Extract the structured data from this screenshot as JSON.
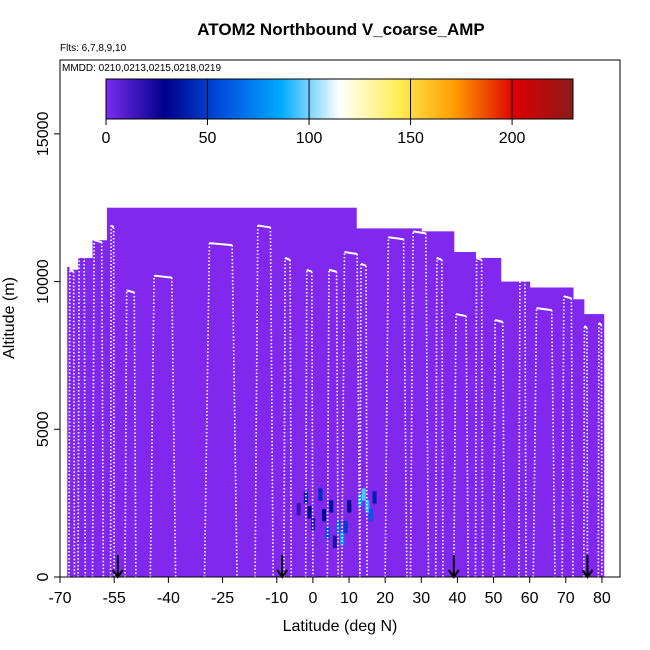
{
  "chart_data": {
    "type": "heatmap",
    "title": "ATOM2 Northbound V_coarse_AMP",
    "flights_label": "Flts: 6,7,8,9,10",
    "dates_label": "MMDD: 0210,0213,0215,0218,0219",
    "xlabel": "Latitude (deg N)",
    "ylabel": "Altitude (m)",
    "xlim": [
      -70,
      85
    ],
    "ylim": [
      0,
      17500
    ],
    "x_ticks": [
      -70,
      -55,
      -40,
      -25,
      -10,
      0,
      10,
      20,
      30,
      40,
      50,
      60,
      70,
      80
    ],
    "x_tick_labels": [
      "-70",
      "-55",
      "-40",
      "-25",
      "-10",
      "0",
      "10",
      "20",
      "30",
      "40",
      "50",
      "60",
      "70",
      "80"
    ],
    "y_ticks": [
      0,
      5000,
      10000,
      15000
    ],
    "y_tick_labels": [
      "0",
      "5000",
      "10000",
      "15000"
    ],
    "colorbar": {
      "range": [
        0,
        230
      ],
      "ticks": [
        0,
        50,
        100,
        150,
        200
      ],
      "tick_labels": [
        "0",
        "50",
        "100",
        "150",
        "200"
      ],
      "colors": [
        "#7b2cf0",
        "#00008b",
        "#0050e0",
        "#00aaff",
        "#ffffff",
        "#ffee55",
        "#ff9900",
        "#dd0000",
        "#8b1a1a"
      ]
    },
    "background_value": 0,
    "background_color": "#8128ee",
    "coverage_ceiling": [
      {
        "x": [
          -68,
          -67.5
        ],
        "y": 10500
      },
      {
        "x": [
          -67.5,
          -65
        ],
        "y": 10400
      },
      {
        "x": [
          -65,
          -61
        ],
        "y": 10800
      },
      {
        "x": [
          -61,
          -57
        ],
        "y": 11400
      },
      {
        "x": [
          -57,
          -42
        ],
        "y": 12500
      },
      {
        "x": [
          -42,
          -28
        ],
        "y": 12500
      },
      {
        "x": [
          -28,
          -12
        ],
        "y": 12500
      },
      {
        "x": [
          -12,
          -6
        ],
        "y": 12500
      },
      {
        "x": [
          -6,
          12
        ],
        "y": 12500
      },
      {
        "x": [
          12,
          20
        ],
        "y": 11800
      },
      {
        "x": [
          20,
          30
        ],
        "y": 11800
      },
      {
        "x": [
          30,
          39
        ],
        "y": 11700
      },
      {
        "x": [
          39,
          45
        ],
        "y": 11000
      },
      {
        "x": [
          45,
          52
        ],
        "y": 10800
      },
      {
        "x": [
          52,
          60
        ],
        "y": 10000
      },
      {
        "x": [
          60,
          72
        ],
        "y": 9800
      },
      {
        "x": [
          72,
          75
        ],
        "y": 9400
      },
      {
        "x": [
          75,
          80.5
        ],
        "y": 8900
      }
    ],
    "high_value_cells": [
      {
        "x": -2,
        "y": 2700,
        "value": 40
      },
      {
        "x": -1,
        "y": 2200,
        "value": 30
      },
      {
        "x": 0,
        "y": 1800,
        "value": 20
      },
      {
        "x": 2,
        "y": 2800,
        "value": 45
      },
      {
        "x": 3,
        "y": 2100,
        "value": 30
      },
      {
        "x": 4,
        "y": 1500,
        "value": 55
      },
      {
        "x": 5,
        "y": 2400,
        "value": 35
      },
      {
        "x": 7,
        "y": 1700,
        "value": 65
      },
      {
        "x": 8,
        "y": 1300,
        "value": 80
      },
      {
        "x": 9,
        "y": 1700,
        "value": 50
      },
      {
        "x": 10,
        "y": 2400,
        "value": 30
      },
      {
        "x": 13,
        "y": 2600,
        "value": 75
      },
      {
        "x": 14,
        "y": 2800,
        "value": 95
      },
      {
        "x": 15,
        "y": 2400,
        "value": 90
      },
      {
        "x": 16,
        "y": 2100,
        "value": 60
      },
      {
        "x": 17,
        "y": 2700,
        "value": 40
      },
      {
        "x": 6,
        "y": 1200,
        "value": 20
      },
      {
        "x": -4,
        "y": 2300,
        "value": 15
      }
    ],
    "flight_profiles": [
      {
        "x": [
          -67.5,
          -66
        ],
        "y_top": 10400
      },
      {
        "x": [
          -65,
          -63
        ],
        "y_top": 10900
      },
      {
        "x": [
          -61,
          -58
        ],
        "y_top": 11400
      },
      {
        "x": [
          -56,
          -55
        ],
        "y_top": 11900
      },
      {
        "x": [
          -52,
          -49
        ],
        "y_top": 9700
      },
      {
        "x": [
          -45,
          -38
        ],
        "y_top": 10200
      },
      {
        "x": [
          -30,
          -21
        ],
        "y_top": 11300
      },
      {
        "x": [
          -16,
          -11
        ],
        "y_top": 11900
      },
      {
        "x": [
          -8,
          -6
        ],
        "y_top": 10800
      },
      {
        "x": [
          -2,
          0
        ],
        "y_top": 10400
      },
      {
        "x": [
          4,
          7
        ],
        "y_top": 10400
      },
      {
        "x": [
          8,
          13
        ],
        "y_top": 11000
      },
      {
        "x": [
          13,
          15
        ],
        "y_top": 10600
      },
      {
        "x": [
          20,
          26
        ],
        "y_top": 11500
      },
      {
        "x": [
          27,
          32
        ],
        "y_top": 11700
      },
      {
        "x": [
          34,
          36
        ],
        "y_top": 10800
      },
      {
        "x": [
          39,
          43
        ],
        "y_top": 8900
      },
      {
        "x": [
          45,
          47
        ],
        "y_top": 10800
      },
      {
        "x": [
          50,
          53
        ],
        "y_top": 8700
      },
      {
        "x": [
          57,
          59
        ],
        "y_top": 10100
      },
      {
        "x": [
          61,
          67
        ],
        "y_top": 9100
      },
      {
        "x": [
          69,
          72
        ],
        "y_top": 9500
      },
      {
        "x": [
          75,
          76
        ],
        "y_top": 8500
      },
      {
        "x": [
          79,
          80
        ],
        "y_top": 8600
      }
    ],
    "arrows_at_x": [
      -54,
      -8.5,
      39,
      76
    ]
  }
}
